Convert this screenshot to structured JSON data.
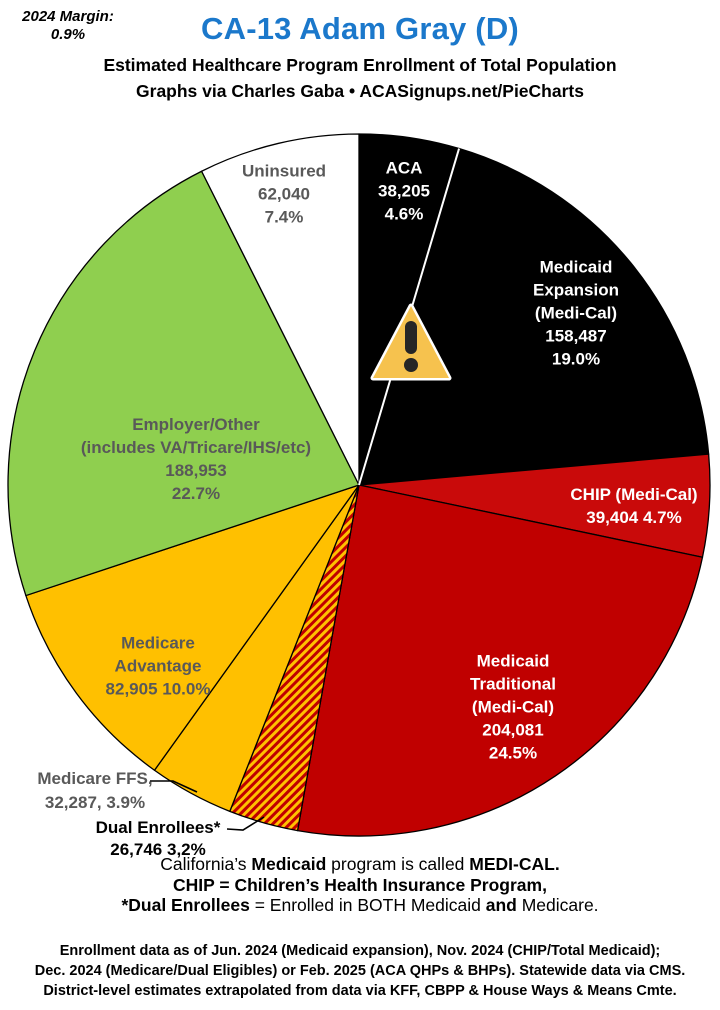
{
  "header": {
    "margin_label": "2024 Margin:",
    "margin_value": "0.9%",
    "title": "CA-13 Adam Gray (D)",
    "title_color": "#1B78CB",
    "subtitle": "Estimated Healthcare Program Enrollment of Total Population",
    "credit": "Graphs via Charles Gaba   •   ACASignups.net/PieCharts"
  },
  "chart_data": {
    "type": "pie",
    "title": "Estimated Healthcare Program Enrollment of Total Population",
    "start_angle_deg": 0,
    "direction": "clockwise",
    "center_icon": "warning-triangle",
    "center_icon_colors": {
      "fill": "#F6C24E",
      "border": "#FFFFFF",
      "glyph": "#262626"
    },
    "slices": [
      {
        "id": "aca",
        "name": "ACA",
        "enrollment": 38205,
        "pct": 4.6,
        "color": "#000000",
        "text_color": "#FFFFFF",
        "label_lines": [
          "ACA",
          "38,205",
          "4.6%"
        ],
        "white_divider_after": true
      },
      {
        "id": "medicaid-expansion",
        "name": "Medicaid Expansion (Medi-Cal)",
        "enrollment": 158487,
        "pct": 19.0,
        "color": "#000000",
        "text_color": "#FFFFFF",
        "label_lines": [
          "Medicaid",
          "Expansion",
          "(Medi-Cal)",
          "158,487",
          "19.0%"
        ]
      },
      {
        "id": "chip",
        "name": "CHIP (Medi-Cal)",
        "enrollment": 39404,
        "pct": 4.7,
        "color": "#C90A0A",
        "text_color": "#FFFFFF",
        "label_lines": [
          "CHIP (Medi-Cal)",
          "39,404 4.7%"
        ]
      },
      {
        "id": "medicaid-traditional",
        "name": "Medicaid Traditional (Medi-Cal)",
        "enrollment": 204081,
        "pct": 24.5,
        "color": "#C00000",
        "text_color": "#FFFFFF",
        "label_lines": [
          "Medicaid",
          "Traditional",
          "(Medi-Cal)",
          "204,081",
          "24.5%"
        ]
      },
      {
        "id": "dual-enrollees",
        "name": "Dual Enrollees",
        "enrollment": 26746,
        "pct": 3.2,
        "hatch": true,
        "hatch_colors": [
          "#FFC000",
          "#C00000"
        ],
        "text_color": "#000000",
        "label_lines": [
          "Dual Enrollees*",
          "26,746 3,2%"
        ]
      },
      {
        "id": "medicare-ffs",
        "name": "Medicare FFS",
        "enrollment": 32287,
        "pct": 3.9,
        "color": "#FFC000",
        "text_color": "#595959",
        "label_lines": [
          "Medicare FFS,",
          "32,287, 3.9%"
        ]
      },
      {
        "id": "medicare-advantage",
        "name": "Medicare Advantage",
        "enrollment": 82905,
        "pct": 10.0,
        "color": "#FFC000",
        "text_color": "#595959",
        "label_lines": [
          "Medicare",
          "Advantage",
          "82,905 10.0%"
        ]
      },
      {
        "id": "employer-other",
        "name": "Employer/Other (includes VA/Tricare/IHS/etc)",
        "enrollment": 188953,
        "pct": 22.7,
        "color": "#8FCF4F",
        "text_color": "#595959",
        "label_lines": [
          "Employer/Other",
          "(includes VA/Tricare/IHS/etc)",
          "188,953",
          "22.7%"
        ]
      },
      {
        "id": "uninsured",
        "name": "Uninsured",
        "enrollment": 62040,
        "pct": 7.4,
        "color": "#FFFFFF",
        "text_color": "#595959",
        "label_lines": [
          "Uninsured",
          "62,040",
          "7.4%"
        ]
      }
    ]
  },
  "notes": {
    "line1": [
      {
        "text": "California’s ",
        "bold": false
      },
      {
        "text": "Medicaid",
        "bold": true
      },
      {
        "text": " program is called ",
        "bold": false
      },
      {
        "text": "MEDI-CAL.",
        "bold": true
      }
    ],
    "line2": [
      {
        "text": "CHIP = Children’s Health Insurance Program,",
        "bold": true
      }
    ],
    "line3": [
      {
        "text": "*Dual Enrollees",
        "bold": true
      },
      {
        "text": " = Enrolled in BOTH Medicaid ",
        "bold": false
      },
      {
        "text": "and",
        "bold": true
      },
      {
        "text": " Medicare.",
        "bold": false
      }
    ]
  },
  "footer": {
    "lines": [
      "Enrollment data as of Jun. 2024 (Medicaid expansion), Nov. 2024 (CHIP/Total Medicaid);",
      "Dec. 2024 (Medicare/Dual Eligibles) or Feb. 2025 (ACA QHPs & BHPs). Statewide data via CMS.",
      "District-level estimates extrapolated from data via KFF, CBPP & House Ways & Means Cmte."
    ]
  }
}
